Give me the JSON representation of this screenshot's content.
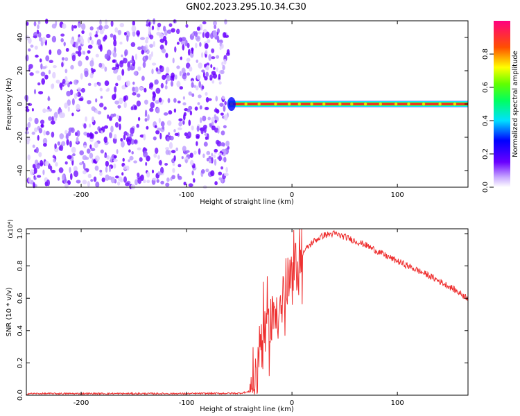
{
  "title": "GN02.2023.295.10.34.C30",
  "chart_data": [
    {
      "type": "heatmap",
      "name": "spectrogram",
      "xlabel": "Height of straight line (km)",
      "ylabel": "Frequency (Hz)",
      "xlim": [
        -252,
        167
      ],
      "ylim": [
        -50,
        50
      ],
      "xticks": [
        -200,
        -100,
        0,
        100
      ],
      "yticks": [
        -40,
        -20,
        0,
        20,
        40
      ],
      "colorbar": {
        "label": "Normalized spectral amplitude",
        "range": [
          0,
          1
        ],
        "ticks": [
          "0.0",
          "0.2",
          "0.4",
          "0.6",
          "0.8"
        ]
      },
      "regions": [
        {
          "x_range": [
            -252,
            -60
          ],
          "description": "broadband noise",
          "amplitude": [
            0.05,
            0.35
          ]
        },
        {
          "x_range": [
            -60,
            167
          ],
          "center_frequency": 0,
          "amplitude": 0.9
        }
      ],
      "grid": false
    },
    {
      "type": "line",
      "name": "snr",
      "xlabel": "Height of straight line (km)",
      "ylabel": "SNR (10 * v/v)",
      "y_multiplier": "(x10⁴)",
      "xlim": [
        -252,
        167
      ],
      "ylim": [
        0,
        1.03
      ],
      "xticks": [
        -200,
        -100,
        0,
        100
      ],
      "yticks": [
        "0.0",
        "0.2",
        "0.4",
        "0.6",
        "0.8",
        "1.0"
      ],
      "color": "#ee3030",
      "x": [
        -252,
        -200,
        -150,
        -100,
        -50,
        -40,
        -35,
        -30,
        -25,
        -20,
        -15,
        -10,
        -5,
        0,
        5,
        10,
        20,
        30,
        40,
        50,
        70,
        90,
        110,
        130,
        150,
        167
      ],
      "y": [
        0.008,
        0.008,
        0.008,
        0.008,
        0.01,
        0.02,
        0.06,
        0.35,
        0.4,
        0.45,
        0.55,
        0.55,
        0.62,
        0.72,
        0.82,
        0.88,
        0.95,
        0.99,
        1.0,
        0.98,
        0.93,
        0.86,
        0.8,
        0.74,
        0.67,
        0.6
      ],
      "grid": false
    }
  ]
}
